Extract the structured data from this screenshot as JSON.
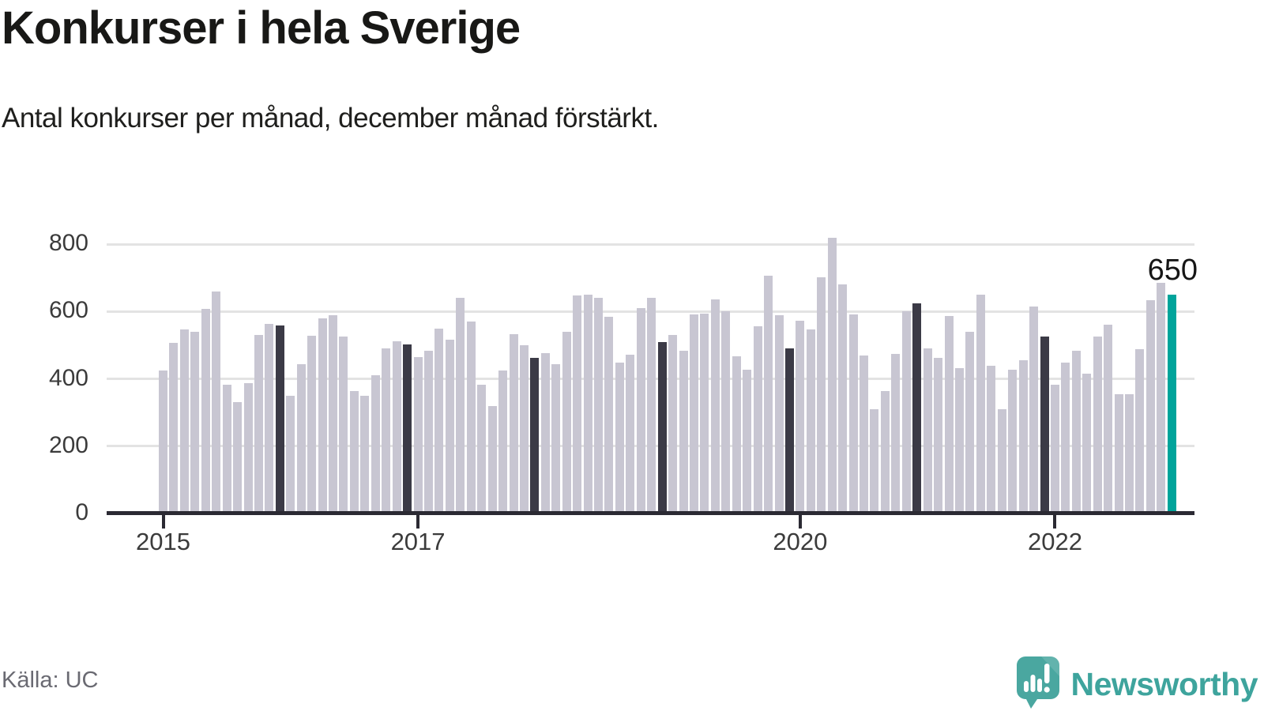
{
  "header": {
    "title": "Konkurser i hela Sverige",
    "subtitle": "Antal konkurser per månad, december månad förstärkt."
  },
  "footer": {
    "source": "Källa: UC",
    "brand": "Newsworthy"
  },
  "colors": {
    "bar": "#c8c6d2",
    "december": "#3b3a46",
    "highlight": "#00a49b",
    "grid": "#e3e3e3",
    "axis": "#2b2a33",
    "tick_text": "#3b3b3b",
    "muted": "#6a6a72",
    "brand": "#3ea49d",
    "logo_bubble": "#4aa7a0"
  },
  "chart_data": {
    "type": "bar",
    "title": "Konkurser i hela Sverige",
    "subtitle": "Antal konkurser per månad, december månad förstärkt.",
    "xlabel": "",
    "ylabel": "",
    "ylim": [
      0,
      870
    ],
    "yticks": [
      0,
      200,
      400,
      600,
      800
    ],
    "grid": "horizontal",
    "series_name": "Antal konkurser per månad",
    "highlight_rule": "december bars dark, latest month teal",
    "series_by_year": [
      {
        "year": "2015",
        "values": [
          425,
          507,
          547,
          540,
          608,
          659,
          382,
          330,
          386,
          530,
          563,
          558
        ]
      },
      {
        "year": "2016",
        "values": [
          350,
          444,
          529,
          580,
          590,
          526,
          364,
          350,
          411,
          490,
          512,
          502
        ]
      },
      {
        "year": "2017",
        "values": [
          464,
          483,
          549,
          515,
          640,
          570,
          382,
          318,
          425,
          532,
          500,
          462
        ]
      },
      {
        "year": "2018",
        "values": [
          476,
          443,
          540,
          647,
          651,
          640,
          583,
          447,
          471,
          610,
          641,
          508
        ]
      },
      {
        "year": "2019",
        "values": [
          531,
          483,
          592,
          594,
          635,
          601,
          468,
          426,
          557,
          705,
          588,
          491
        ]
      },
      {
        "year": "2020",
        "values": [
          572,
          546,
          702,
          819,
          681,
          592,
          469,
          309,
          363,
          473,
          601,
          624
        ]
      },
      {
        "year": "2021",
        "values": [
          491,
          461,
          586,
          432,
          540,
          650,
          438,
          310,
          428,
          455,
          614,
          526
        ]
      },
      {
        "year": "2022",
        "values": [
          383,
          448,
          483,
          416,
          526,
          560,
          354,
          354,
          487,
          633,
          684,
          650
        ]
      }
    ],
    "xticks": [
      {
        "label": "2015",
        "month_index": 0
      },
      {
        "label": "2017",
        "month_index": 24
      },
      {
        "label": "2020",
        "month_index": 60
      },
      {
        "label": "2022",
        "month_index": 84
      }
    ],
    "annotation": {
      "text": "650",
      "month_index": 95
    }
  }
}
